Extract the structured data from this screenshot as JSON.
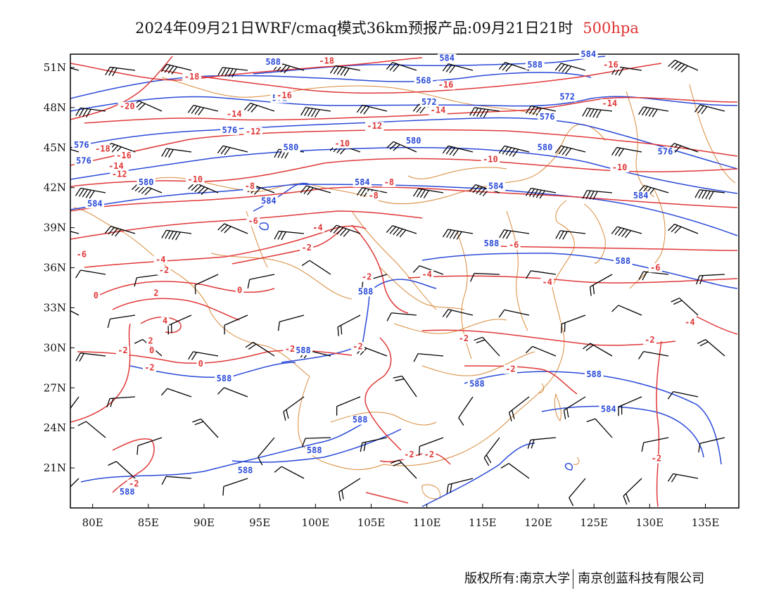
{
  "title": {
    "text": "2024年09月21日WRF/cmaq模式36km预报产品:09月21日21时",
    "level": "500hpa"
  },
  "footer": {
    "left": "版权所有:南京大学",
    "right": "南京创蓝科技有限公司"
  },
  "colors": {
    "height_contour": "#2a4ad8",
    "temperature_contour": "#e03838",
    "border": "#d98a3a",
    "wind_barb": "#000000",
    "frame": "#000000"
  },
  "map": {
    "lon_range": [
      78,
      138
    ],
    "lat_range": [
      18,
      52
    ],
    "x_ticks": [
      "80E",
      "85E",
      "90E",
      "95E",
      "100E",
      "105E",
      "110E",
      "115E",
      "120E",
      "125E",
      "130E",
      "135E"
    ],
    "y_ticks": [
      "51N",
      "48N",
      "45N",
      "42N",
      "39N",
      "36N",
      "33N",
      "30N",
      "27N",
      "24N",
      "21N"
    ],
    "height_labels": [
      {
        "text": "584",
        "lon": 124.5,
        "lat": 51.8
      },
      {
        "text": "588",
        "lon": 96.2,
        "lat": 51.2
      },
      {
        "text": "584",
        "lon": 111.8,
        "lat": 51.5
      },
      {
        "text": "588",
        "lon": 119.7,
        "lat": 51.0
      },
      {
        "text": "568",
        "lon": 109.7,
        "lat": 49.8
      },
      {
        "text": "572",
        "lon": 96.8,
        "lat": 48.5
      },
      {
        "text": "572",
        "lon": 110.2,
        "lat": 48.2
      },
      {
        "text": "572",
        "lon": 122.6,
        "lat": 48.6
      },
      {
        "text": "576",
        "lon": 120.8,
        "lat": 47.1
      },
      {
        "text": "576",
        "lon": 92.3,
        "lat": 46.1
      },
      {
        "text": "576",
        "lon": 79.0,
        "lat": 45.0
      },
      {
        "text": "576",
        "lon": 79.2,
        "lat": 43.8
      },
      {
        "text": "580",
        "lon": 97.8,
        "lat": 44.8
      },
      {
        "text": "580",
        "lon": 108.8,
        "lat": 45.3
      },
      {
        "text": "580",
        "lon": 120.6,
        "lat": 44.8
      },
      {
        "text": "576",
        "lon": 131.4,
        "lat": 44.5
      },
      {
        "text": "580",
        "lon": 84.8,
        "lat": 42.2
      },
      {
        "text": "584",
        "lon": 104.2,
        "lat": 42.2
      },
      {
        "text": "584",
        "lon": 116.2,
        "lat": 41.9
      },
      {
        "text": "584",
        "lon": 129.2,
        "lat": 41.2
      },
      {
        "text": "584",
        "lon": 80.2,
        "lat": 40.6
      },
      {
        "text": "584",
        "lon": 95.8,
        "lat": 40.8
      },
      {
        "text": "588",
        "lon": 115.8,
        "lat": 37.6
      },
      {
        "text": "588",
        "lon": 127.6,
        "lat": 36.3
      },
      {
        "text": "588",
        "lon": 104.5,
        "lat": 34.0
      },
      {
        "text": "588",
        "lon": 98.9,
        "lat": 29.6
      },
      {
        "text": "588",
        "lon": 125.0,
        "lat": 27.8
      },
      {
        "text": "588",
        "lon": 114.5,
        "lat": 27.1
      },
      {
        "text": "588",
        "lon": 91.8,
        "lat": 27.5
      },
      {
        "text": "584",
        "lon": 126.3,
        "lat": 25.2
      },
      {
        "text": "588",
        "lon": 104.0,
        "lat": 24.4
      },
      {
        "text": "588",
        "lon": 99.9,
        "lat": 22.1
      },
      {
        "text": "588",
        "lon": 93.7,
        "lat": 20.6
      },
      {
        "text": "588",
        "lon": 83.1,
        "lat": 19.0
      }
    ],
    "temperature_labels": [
      {
        "text": "-18",
        "lon": 101.0,
        "lat": 51.3
      },
      {
        "text": "-18",
        "lon": 88.9,
        "lat": 50.1
      },
      {
        "text": "-16",
        "lon": 126.5,
        "lat": 51.0
      },
      {
        "text": "-16",
        "lon": 97.2,
        "lat": 48.7
      },
      {
        "text": "-16",
        "lon": 111.7,
        "lat": 49.5
      },
      {
        "text": "-20",
        "lon": 83.1,
        "lat": 47.9
      },
      {
        "text": "-14",
        "lon": 92.7,
        "lat": 47.3
      },
      {
        "text": "-14",
        "lon": 111.0,
        "lat": 47.6
      },
      {
        "text": "-14",
        "lon": 126.4,
        "lat": 48.1
      },
      {
        "text": "-12",
        "lon": 94.4,
        "lat": 46.0
      },
      {
        "text": "-12",
        "lon": 105.3,
        "lat": 46.4
      },
      {
        "text": "-10",
        "lon": 102.4,
        "lat": 45.1
      },
      {
        "text": "-18",
        "lon": 80.9,
        "lat": 44.7
      },
      {
        "text": "-16",
        "lon": 82.8,
        "lat": 44.2
      },
      {
        "text": "-14",
        "lon": 82.1,
        "lat": 43.4
      },
      {
        "text": "-12",
        "lon": 82.4,
        "lat": 42.8
      },
      {
        "text": "-10",
        "lon": 115.7,
        "lat": 43.9
      },
      {
        "text": "-10",
        "lon": 127.3,
        "lat": 43.3
      },
      {
        "text": "-10",
        "lon": 89.2,
        "lat": 42.4
      },
      {
        "text": "-8",
        "lon": 94.1,
        "lat": 41.9
      },
      {
        "text": "-8",
        "lon": 106.6,
        "lat": 42.2
      },
      {
        "text": "-8",
        "lon": 105.2,
        "lat": 41.2
      },
      {
        "text": "-6",
        "lon": 94.4,
        "lat": 39.3
      },
      {
        "text": "-4",
        "lon": 100.2,
        "lat": 38.8
      },
      {
        "text": "-2",
        "lon": 99.2,
        "lat": 37.3
      },
      {
        "text": "-6",
        "lon": 79.0,
        "lat": 36.8
      },
      {
        "text": "-4",
        "lon": 86.1,
        "lat": 36.4
      },
      {
        "text": "-2",
        "lon": 86.4,
        "lat": 35.6
      },
      {
        "text": "-6",
        "lon": 117.8,
        "lat": 37.5
      },
      {
        "text": "-6",
        "lon": 130.5,
        "lat": 35.8
      },
      {
        "text": "0",
        "lon": 93.2,
        "lat": 34.1
      },
      {
        "text": "2",
        "lon": 85.7,
        "lat": 33.9
      },
      {
        "text": "0",
        "lon": 80.3,
        "lat": 33.7
      },
      {
        "text": "-2",
        "lon": 104.6,
        "lat": 35.1
      },
      {
        "text": "-4",
        "lon": 110.0,
        "lat": 35.3
      },
      {
        "text": "-4",
        "lon": 120.8,
        "lat": 34.7
      },
      {
        "text": "4",
        "lon": 86.5,
        "lat": 31.8
      },
      {
        "text": "2",
        "lon": 85.2,
        "lat": 30.3
      },
      {
        "text": "0",
        "lon": 85.3,
        "lat": 29.6
      },
      {
        "text": "-2",
        "lon": 82.7,
        "lat": 29.6
      },
      {
        "text": "0",
        "lon": 89.7,
        "lat": 28.6
      },
      {
        "text": "-2",
        "lon": 85.1,
        "lat": 28.3
      },
      {
        "text": "-2",
        "lon": 97.7,
        "lat": 29.7
      },
      {
        "text": "-2",
        "lon": 103.8,
        "lat": 29.9
      },
      {
        "text": "-2",
        "lon": 113.3,
        "lat": 30.5
      },
      {
        "text": "-2",
        "lon": 117.5,
        "lat": 28.2
      },
      {
        "text": "-2",
        "lon": 130.0,
        "lat": 30.4
      },
      {
        "text": "-4",
        "lon": 133.6,
        "lat": 31.7
      },
      {
        "text": "-2",
        "lon": 108.4,
        "lat": 21.8
      },
      {
        "text": "-2",
        "lon": 110.2,
        "lat": 21.8
      },
      {
        "text": "-2",
        "lon": 130.6,
        "lat": 21.5
      },
      {
        "text": "-2",
        "lon": 83.7,
        "lat": 19.6
      }
    ]
  }
}
